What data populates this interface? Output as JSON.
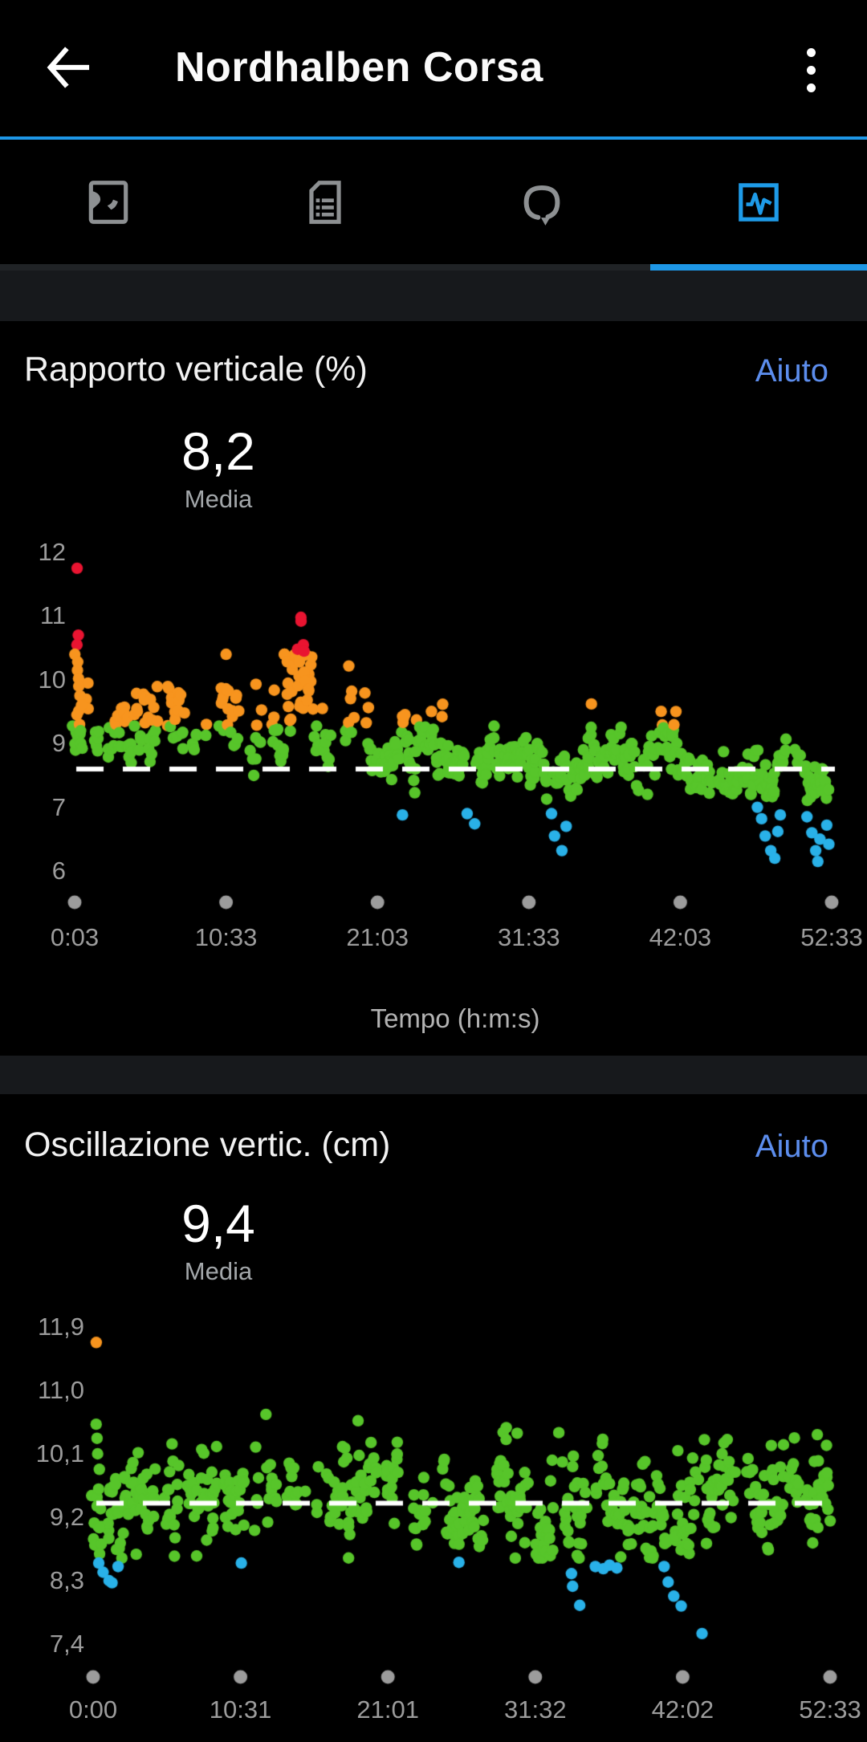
{
  "header": {
    "title": "Nordhalben Corsa"
  },
  "tabs": [
    {
      "name": "map",
      "active": false
    },
    {
      "name": "details",
      "active": false
    },
    {
      "name": "laps",
      "active": false
    },
    {
      "name": "charts",
      "active": true
    }
  ],
  "colors": {
    "accent_blue": "#1e97e6",
    "help_blue": "#5c8ded",
    "tab_inactive": "#8d9092",
    "axis_gray": "#9c9c9c",
    "dot_red": "#e91431",
    "dot_orange": "#f7941e",
    "dot_green": "#57c52a",
    "dot_blue": "#29b1e8"
  },
  "sections": [
    {
      "title": "Rapporto verticale (%)",
      "help_label": "Aiuto",
      "stat_value": "8,2",
      "stat_label": "Media",
      "axis_title": "Tempo (h:m:s)"
    },
    {
      "title": "Oscillazione vertic. (cm)",
      "help_label": "Aiuto",
      "stat_value": "9,4",
      "stat_label": "Media"
    }
  ],
  "chart_data": [
    {
      "type": "scatter",
      "title": "Rapporto verticale (%)",
      "unit": "%",
      "average": 8.2,
      "avg_line_value": 8.2,
      "xlabel": "Tempo (h:m:s)",
      "x_ticks": [
        "0:03",
        "10:33",
        "21:03",
        "31:33",
        "42:03",
        "52:33"
      ],
      "x_tick_seconds": [
        3,
        633,
        1263,
        1893,
        2523,
        3153
      ],
      "y_tick_labels": [
        "12",
        "11",
        "10",
        "9",
        "7",
        "6"
      ],
      "y_tick_values": [
        12,
        11,
        10,
        9,
        7,
        6
      ],
      "legend": "none",
      "grid": false,
      "color_zones": {
        "red_min": 10.45,
        "orange_min": 9.28,
        "blue_max": 7.12
      },
      "t_max": 3153,
      "sample_step_s": 3.9,
      "noise_sigma": 0.4,
      "clamp": [
        6.1,
        10.4
      ],
      "no_low_before_s": 1300,
      "trend_mean_keypoints": [
        [
          0,
          9.6
        ],
        [
          120,
          9.1
        ],
        [
          230,
          9.3
        ],
        [
          390,
          9.4
        ],
        [
          500,
          8.85
        ],
        [
          615,
          9.5
        ],
        [
          790,
          8.9
        ],
        [
          955,
          9.9
        ],
        [
          1050,
          8.7
        ],
        [
          1135,
          9.2
        ],
        [
          1280,
          8.6
        ],
        [
          1460,
          8.95
        ],
        [
          1650,
          8.45
        ],
        [
          1850,
          8.3
        ],
        [
          2010,
          8.1
        ],
        [
          2250,
          8.4
        ],
        [
          2360,
          8.15
        ],
        [
          2455,
          9.0
        ],
        [
          2600,
          8.05
        ],
        [
          2750,
          7.9
        ],
        [
          2890,
          7.8
        ],
        [
          2990,
          8.7
        ],
        [
          3075,
          7.55
        ],
        [
          3130,
          7.75
        ],
        [
          3153,
          7.7
        ]
      ],
      "extra_points": [
        [
          8,
          11.75
        ],
        [
          14,
          10.7
        ],
        [
          16,
          10.55
        ],
        [
          10,
          10.4
        ],
        [
          12,
          10.28
        ],
        [
          15,
          10.15
        ],
        [
          18,
          10.02
        ],
        [
          20,
          9.9
        ],
        [
          23,
          9.75
        ],
        [
          26,
          9.6
        ],
        [
          11,
          9.45
        ],
        [
          19,
          9.3
        ],
        [
          24,
          9.15
        ],
        [
          28,
          9.0
        ],
        [
          31,
          8.85
        ],
        [
          34,
          9.2
        ],
        [
          930,
          10.48
        ],
        [
          940,
          10.92
        ],
        [
          948,
          10.98
        ],
        [
          955,
          10.55
        ],
        [
          962,
          10.45
        ],
        [
          936,
          10.28
        ],
        [
          958,
          10.12
        ],
        [
          968,
          9.98
        ],
        [
          976,
          9.85
        ],
        [
          1370,
          6.88
        ],
        [
          1640,
          6.9
        ],
        [
          1662,
          6.74
        ],
        [
          1985,
          6.9
        ],
        [
          2005,
          6.55
        ],
        [
          2025,
          6.32
        ],
        [
          2050,
          6.7
        ],
        [
          2840,
          7.0
        ],
        [
          2858,
          6.82
        ],
        [
          2876,
          6.55
        ],
        [
          2894,
          6.32
        ],
        [
          2910,
          6.2
        ],
        [
          2928,
          6.62
        ],
        [
          2944,
          6.88
        ],
        [
          3052,
          6.85
        ],
        [
          3068,
          6.6
        ],
        [
          3084,
          6.32
        ],
        [
          3096,
          6.15
        ],
        [
          3110,
          6.5
        ],
        [
          3128,
          6.72
        ],
        [
          3144,
          6.42
        ]
      ],
      "seed": 42
    },
    {
      "type": "scatter",
      "title": "Oscillazione vertic. (cm)",
      "unit": "cm",
      "average": 9.4,
      "avg_line_value": 9.4,
      "xlabel": "Tempo (h:m:s)",
      "x_ticks": [
        "0:00",
        "10:31",
        "21:01",
        "31:32",
        "42:02",
        "52:33"
      ],
      "x_tick_seconds": [
        0,
        631,
        1261,
        1892,
        2522,
        3153
      ],
      "y_tick_labels": [
        "11,9",
        "11,0",
        "10,1",
        "9,2",
        "8,3",
        "7,4"
      ],
      "y_tick_values": [
        11.9,
        11.0,
        10.1,
        9.2,
        8.3,
        7.4
      ],
      "legend": "none",
      "grid": false,
      "color_zones": {
        "orange_min": 11.3,
        "blue_max": 8.58
      },
      "t_max": 3153,
      "sample_step_s": 3.9,
      "noise_sigma": 0.36,
      "clamp": [
        8.62,
        10.68
      ],
      "trend_mean_keypoints": [
        [
          0,
          9.3
        ],
        [
          150,
          9.5
        ],
        [
          330,
          9.6
        ],
        [
          480,
          9.8
        ],
        [
          560,
          9.5
        ],
        [
          700,
          9.6
        ],
        [
          800,
          9.75
        ],
        [
          900,
          9.5
        ],
        [
          1000,
          9.4
        ],
        [
          1100,
          9.6
        ],
        [
          1200,
          9.7
        ],
        [
          1320,
          9.5
        ],
        [
          1450,
          9.35
        ],
        [
          1560,
          9.15
        ],
        [
          1650,
          9.4
        ],
        [
          1750,
          9.5
        ],
        [
          1850,
          9.3
        ],
        [
          1950,
          9.1
        ],
        [
          2060,
          9.3
        ],
        [
          2160,
          9.4
        ],
        [
          2260,
          9.3
        ],
        [
          2360,
          9.2
        ],
        [
          2470,
          9.1
        ],
        [
          2570,
          9.35
        ],
        [
          2680,
          9.5
        ],
        [
          2780,
          9.6
        ],
        [
          2880,
          9.5
        ],
        [
          2980,
          9.6
        ],
        [
          3080,
          9.7
        ],
        [
          3153,
          9.65
        ]
      ],
      "extra_points": [
        [
          12,
          11.68
        ],
        [
          15,
          10.52
        ],
        [
          17,
          10.32
        ],
        [
          19,
          10.1
        ],
        [
          21,
          9.88
        ],
        [
          24,
          9.6
        ],
        [
          27,
          9.32
        ],
        [
          29,
          9.05
        ],
        [
          31,
          8.82
        ],
        [
          34,
          8.68
        ],
        [
          20,
          8.55
        ],
        [
          42,
          8.42
        ],
        [
          62,
          8.3
        ],
        [
          86,
          8.27
        ],
        [
          110,
          8.5
        ],
        [
          640,
          8.55
        ],
        [
          1560,
          8.56
        ],
        [
          2040,
          8.4
        ],
        [
          2058,
          8.22
        ],
        [
          2076,
          7.95
        ],
        [
          2150,
          8.5
        ],
        [
          2182,
          8.47
        ],
        [
          2212,
          8.52
        ],
        [
          2242,
          8.48
        ],
        [
          2440,
          8.5
        ],
        [
          2465,
          8.28
        ],
        [
          2490,
          8.08
        ],
        [
          2516,
          7.94
        ],
        [
          2602,
          7.55
        ],
        [
          745,
          10.66
        ],
        [
          1990,
          10.4
        ],
        [
          2620,
          10.3
        ],
        [
          3140,
          10.22
        ]
      ],
      "seed": 1337
    }
  ]
}
